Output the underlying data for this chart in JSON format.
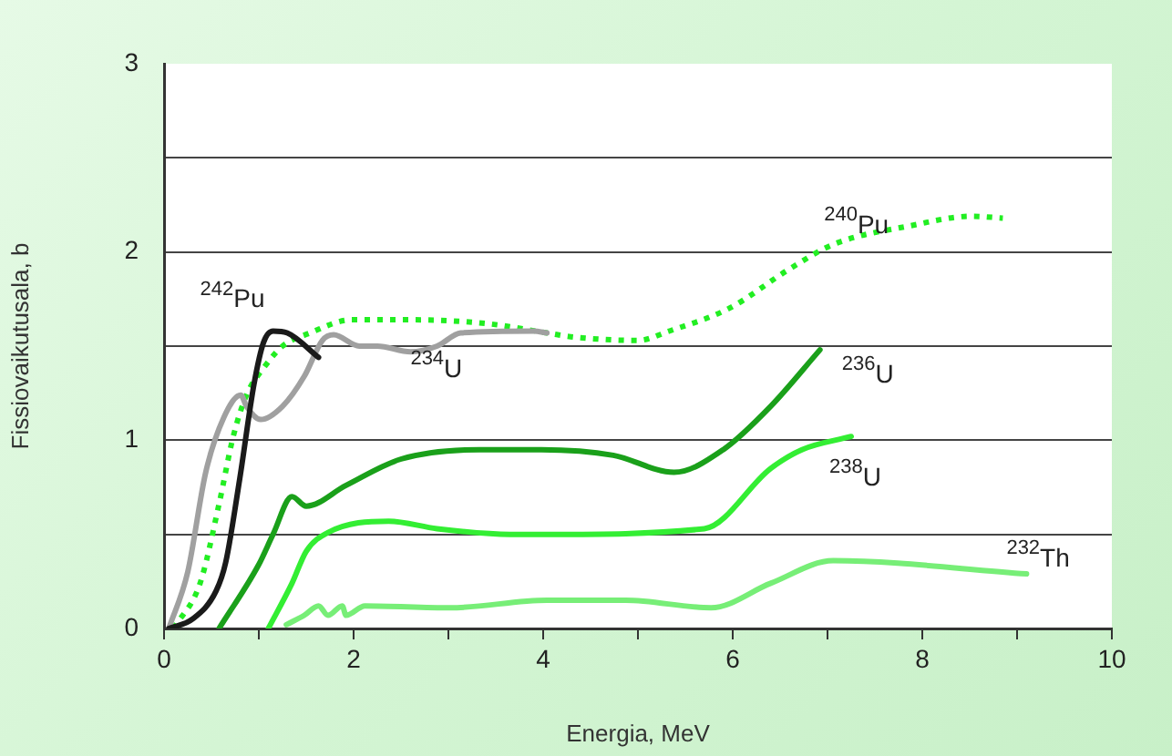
{
  "chart_data": {
    "type": "line",
    "xlabel": "Energia, MeV",
    "ylabel": "Fissiovaikutusala, b",
    "xlim": [
      0,
      10
    ],
    "xticks": [
      0,
      {
        "value": 1,
        "label": null
      },
      2,
      {
        "value": 3,
        "label": null
      },
      4,
      {
        "value": 5,
        "label": null
      },
      6,
      {
        "value": 7,
        "label": null
      },
      8,
      {
        "value": 9,
        "label": null
      },
      10
    ],
    "ylim": [
      0,
      3
    ],
    "yticks": [
      0,
      {
        "value": 0.5,
        "label": null
      },
      1,
      {
        "value": 1.5,
        "label": null
      },
      2,
      {
        "value": 2.5,
        "label": null
      },
      3
    ],
    "grid": "y",
    "legend": false,
    "marker": "none",
    "series": [
      {
        "name": "$^{242}$Pu",
        "color": "#1a1a1a",
        "x": [
          0.05,
          0.3,
          0.55,
          0.65,
          0.8,
          0.95,
          1.05,
          1.15,
          1.3,
          1.63
        ],
        "values": [
          0,
          0.05,
          0.2,
          0.35,
          0.8,
          1.3,
          1.52,
          1.58,
          1.57,
          1.44
        ]
      },
      {
        "name": "$^{234}$U",
        "color": "#a0a0a0",
        "x": [
          0.05,
          0.25,
          0.44,
          0.63,
          0.81,
          0.87,
          1.02,
          1.25,
          1.48,
          1.67,
          1.79,
          2.06,
          2.25,
          2.6,
          2.88,
          3.13,
          3.9,
          4.04
        ],
        "values": [
          0,
          0.3,
          0.83,
          1.12,
          1.24,
          1.18,
          1.11,
          1.18,
          1.34,
          1.53,
          1.56,
          1.5,
          1.5,
          1.47,
          1.5,
          1.57,
          1.58,
          1.57
        ]
      },
      {
        "name": "$^{240}$Pu",
        "color": "#22ee22",
        "line_style": "dotted",
        "x": [
          0.1,
          0.38,
          0.58,
          0.73,
          0.87,
          1.06,
          1.25,
          1.54,
          1.98,
          2.56,
          3.4,
          4.04,
          4.29,
          5.0,
          5.33,
          5.96,
          6.6,
          7.06,
          7.88,
          8.52,
          8.85
        ],
        "values": [
          0,
          0.24,
          0.66,
          1.02,
          1.24,
          1.39,
          1.5,
          1.57,
          1.64,
          1.64,
          1.62,
          1.57,
          1.55,
          1.53,
          1.58,
          1.7,
          1.91,
          2.04,
          2.14,
          2.19,
          2.18
        ]
      },
      {
        "name": "$^{236}$U",
        "color": "#1aa01a",
        "x": [
          0.58,
          1.0,
          1.15,
          1.35,
          1.5,
          1.92,
          2.5,
          3.33,
          3.98,
          4.74,
          5.38,
          5.9,
          6.4,
          6.92
        ],
        "values": [
          0,
          0.34,
          0.5,
          0.7,
          0.65,
          0.76,
          0.9,
          0.95,
          0.95,
          0.92,
          0.83,
          0.95,
          1.18,
          1.48
        ]
      },
      {
        "name": "$^{238}$U",
        "color": "#33ee33",
        "x": [
          1.1,
          1.35,
          1.5,
          1.73,
          2.37,
          2.88,
          3.65,
          4.04,
          5.7,
          6.4,
          6.73,
          7.25
        ],
        "values": [
          0,
          0.24,
          0.41,
          0.51,
          0.57,
          0.53,
          0.5,
          0.5,
          0.53,
          0.85,
          0.95,
          1.02
        ]
      },
      {
        "name": "$^{232}$Th",
        "color": "#77ee77",
        "x": [
          1.29,
          1.48,
          1.63,
          1.73,
          1.88,
          1.92,
          2.12,
          3.02,
          4.04,
          4.87,
          5.77,
          6.4,
          7.06,
          9.1
        ],
        "values": [
          0.02,
          0.07,
          0.12,
          0.07,
          0.12,
          0.07,
          0.12,
          0.11,
          0.15,
          0.15,
          0.11,
          0.24,
          0.36,
          0.29
        ]
      }
    ]
  }
}
